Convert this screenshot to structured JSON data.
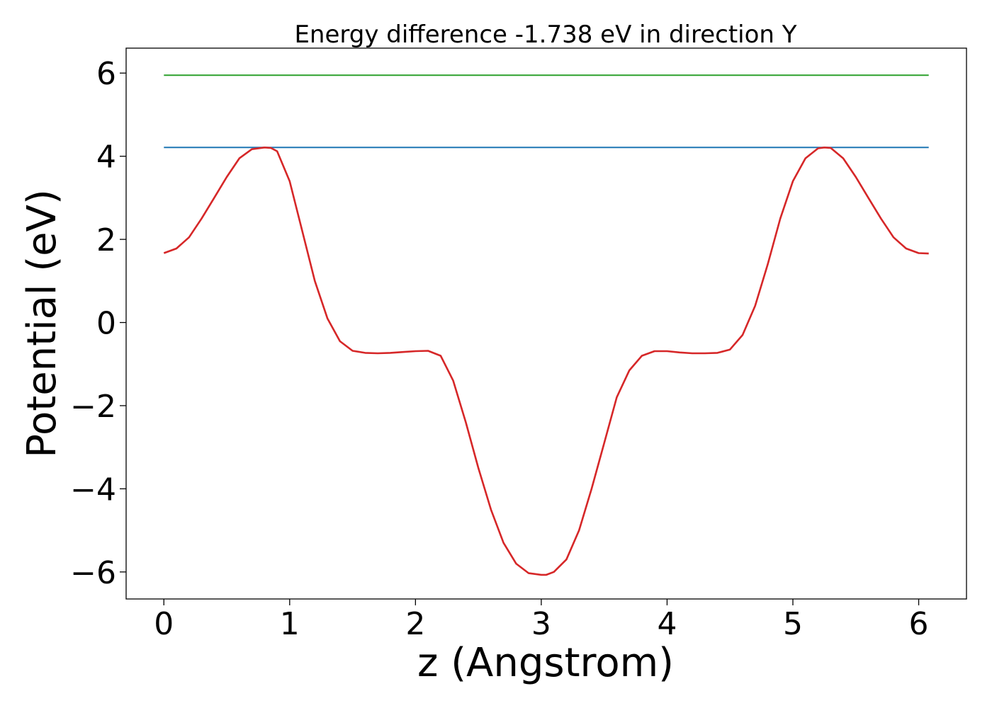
{
  "chart_data": {
    "type": "line",
    "title": "Energy difference -1.738 eV in direction Y",
    "xlabel": "z (Angstrom)",
    "ylabel": "Potential (eV)",
    "xlim": [
      -0.3,
      6.38
    ],
    "ylim": [
      -6.65,
      6.6
    ],
    "grid": false,
    "xticks": [
      0,
      1,
      2,
      3,
      4,
      5,
      6
    ],
    "xtick_labels": [
      "0",
      "1",
      "2",
      "3",
      "4",
      "5",
      "6"
    ],
    "yticks": [
      6,
      4,
      2,
      0,
      -2,
      -4,
      -6
    ],
    "ytick_labels": [
      "6",
      "4",
      "2",
      "0",
      "−2",
      "−4",
      "−6"
    ],
    "series": [
      {
        "color": "#2ca02c",
        "x": [
          0,
          6.08
        ],
        "y": [
          5.95,
          5.95
        ]
      },
      {
        "color": "#1f77b4",
        "x": [
          0,
          6.08
        ],
        "y": [
          4.21,
          4.21
        ]
      },
      {
        "color": "#d62728",
        "x": [
          0,
          0.1,
          0.2,
          0.3,
          0.4,
          0.5,
          0.6,
          0.7,
          0.8,
          0.85,
          0.9,
          1.0,
          1.1,
          1.2,
          1.3,
          1.4,
          1.5,
          1.6,
          1.7,
          1.8,
          1.9,
          2.0,
          2.1,
          2.2,
          2.3,
          2.4,
          2.5,
          2.6,
          2.7,
          2.8,
          2.9,
          3.0,
          3.04,
          3.1,
          3.2,
          3.3,
          3.4,
          3.5,
          3.6,
          3.7,
          3.8,
          3.9,
          4.0,
          4.1,
          4.2,
          4.3,
          4.4,
          4.5,
          4.6,
          4.7,
          4.8,
          4.9,
          5.0,
          5.1,
          5.2,
          5.25,
          5.3,
          5.4,
          5.5,
          5.6,
          5.7,
          5.8,
          5.9,
          6.0,
          6.08
        ],
        "y": [
          1.67,
          1.78,
          2.05,
          2.5,
          3.0,
          3.5,
          3.95,
          4.17,
          4.21,
          4.2,
          4.12,
          3.4,
          2.2,
          1.0,
          0.1,
          -0.45,
          -0.68,
          -0.73,
          -0.74,
          -0.73,
          -0.71,
          -0.69,
          -0.68,
          -0.8,
          -1.4,
          -2.4,
          -3.5,
          -4.5,
          -5.3,
          -5.8,
          -6.03,
          -6.07,
          -6.07,
          -6.0,
          -5.7,
          -5.0,
          -4.0,
          -2.9,
          -1.8,
          -1.15,
          -0.8,
          -0.69,
          -0.69,
          -0.72,
          -0.74,
          -0.74,
          -0.73,
          -0.65,
          -0.3,
          0.4,
          1.4,
          2.5,
          3.4,
          3.95,
          4.19,
          4.21,
          4.2,
          3.95,
          3.5,
          3.0,
          2.5,
          2.05,
          1.78,
          1.67,
          1.66
        ]
      }
    ]
  }
}
